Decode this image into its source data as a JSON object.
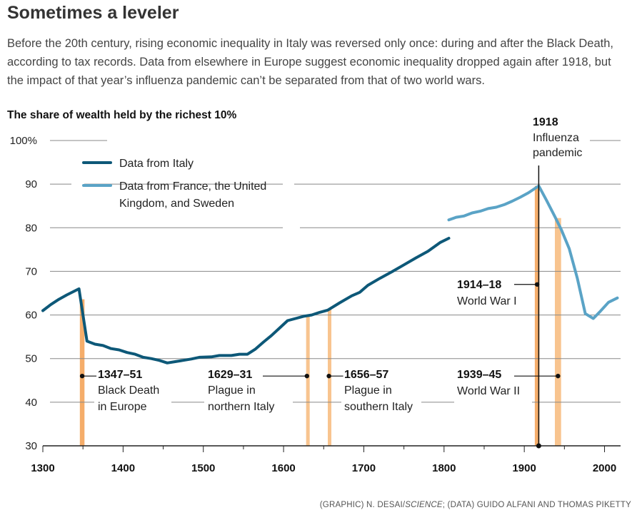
{
  "title": "Sometimes a leveler",
  "subtitle": "Before the 20th century, rising economic inequality in Italy was reversed only once: during and after the Black Death, according to tax records. Data from elsewhere in Europe suggest economic inequality dropped again after 1918, but the impact of that year’s influenza pandemic can’t be separated from that of two world wars.",
  "credit": {
    "prefix": "(GRAPHIC) N. DESAI/",
    "italic": "SCIENCE",
    "suffix": "; (DATA) GUIDO ALFANI AND THOMAS PIKETTY"
  },
  "colors": {
    "italy": "#0d5878",
    "europe": "#5aa3c6",
    "band_dark": "#f5ad6a",
    "band_light": "#f8c48f",
    "grid": "#555555"
  },
  "chart_data": {
    "type": "line",
    "title": "The share of wealth held by the richest 10%",
    "xlabel": "",
    "ylabel": "",
    "xlim": [
      1300,
      2020
    ],
    "ylim": [
      30,
      100
    ],
    "x_ticks": [
      "1300",
      "1400",
      "1500",
      "1600",
      "1700",
      "1800",
      "1900",
      "2000"
    ],
    "y_ticks": [
      "30",
      "40",
      "50",
      "60",
      "70",
      "80",
      "90",
      "100%"
    ],
    "y_tick_values": [
      30,
      40,
      50,
      60,
      70,
      80,
      90,
      100
    ],
    "x_tick_values": [
      1300,
      1400,
      1500,
      1600,
      1700,
      1800,
      1900,
      2000
    ],
    "series": [
      {
        "name": "Data from Italy",
        "color_key": "italy",
        "points": [
          [
            1300,
            61
          ],
          [
            1310,
            62.4
          ],
          [
            1320,
            63.6
          ],
          [
            1330,
            64.6
          ],
          [
            1345,
            66
          ],
          [
            1355,
            54
          ],
          [
            1365,
            53.3
          ],
          [
            1375,
            53
          ],
          [
            1385,
            52.3
          ],
          [
            1395,
            52
          ],
          [
            1405,
            51.4
          ],
          [
            1415,
            51
          ],
          [
            1425,
            50.3
          ],
          [
            1435,
            50
          ],
          [
            1445,
            49.6
          ],
          [
            1455,
            49
          ],
          [
            1465,
            49.3
          ],
          [
            1475,
            49.6
          ],
          [
            1485,
            49.9
          ],
          [
            1495,
            50.3
          ],
          [
            1510,
            50.4
          ],
          [
            1520,
            50.7
          ],
          [
            1535,
            50.7
          ],
          [
            1545,
            51
          ],
          [
            1555,
            51
          ],
          [
            1565,
            52.2
          ],
          [
            1575,
            53.8
          ],
          [
            1585,
            55.3
          ],
          [
            1595,
            57
          ],
          [
            1605,
            58.7
          ],
          [
            1615,
            59.2
          ],
          [
            1625,
            59.7
          ],
          [
            1635,
            60
          ],
          [
            1645,
            60.6
          ],
          [
            1655,
            61.1
          ],
          [
            1670,
            62.8
          ],
          [
            1685,
            64.4
          ],
          [
            1695,
            65.2
          ],
          [
            1705,
            66.8
          ],
          [
            1720,
            68.4
          ],
          [
            1735,
            69.9
          ],
          [
            1750,
            71.5
          ],
          [
            1765,
            73.1
          ],
          [
            1780,
            74.6
          ],
          [
            1795,
            76.6
          ],
          [
            1806,
            77.6
          ]
        ]
      },
      {
        "name": "Data from France, the United Kingdom, and Sweden",
        "color_key": "europe",
        "points": [
          [
            1806,
            81.8
          ],
          [
            1815,
            82.4
          ],
          [
            1825,
            82.7
          ],
          [
            1835,
            83.4
          ],
          [
            1845,
            83.8
          ],
          [
            1855,
            84.4
          ],
          [
            1865,
            84.7
          ],
          [
            1875,
            85.3
          ],
          [
            1885,
            86.1
          ],
          [
            1895,
            87
          ],
          [
            1905,
            88
          ],
          [
            1918,
            89.6
          ],
          [
            1928,
            86.2
          ],
          [
            1938,
            82.6
          ],
          [
            1946,
            79.6
          ],
          [
            1956,
            75.2
          ],
          [
            1966,
            68.5
          ],
          [
            1976,
            60.3
          ],
          [
            1986,
            59.2
          ],
          [
            1994,
            60.7
          ],
          [
            2005,
            62.9
          ],
          [
            2016,
            63.9
          ]
        ]
      }
    ],
    "legend": [
      {
        "label": "Data from Italy",
        "color_key": "italy"
      },
      {
        "label": "Data from France, the United",
        "label2": "Kingdom, and Sweden",
        "color_key": "europe"
      }
    ],
    "bands": [
      {
        "start": 1347,
        "end": 1351,
        "color_key": "band_dark"
      },
      {
        "start": 1629,
        "end": 1631,
        "color_key": "band_light"
      },
      {
        "start": 1656,
        "end": 1657,
        "color_key": "band_light"
      },
      {
        "start": 1914,
        "end": 1918,
        "color_key": "band_dark"
      },
      {
        "start": 1939,
        "end": 1945,
        "color_key": "band_light"
      }
    ],
    "annotations": [
      {
        "years": "1347–51",
        "line1": "Black Death",
        "line2": "in Europe",
        "x": 1349,
        "y": 46
      },
      {
        "years": "1629–31",
        "line1": "Plague in",
        "line2": "northern Italy",
        "x": 1630,
        "y": 46
      },
      {
        "years": "1656–57",
        "line1": "Plague in",
        "line2": "southern Italy",
        "x": 1656.5,
        "y": 46
      },
      {
        "years": "1914–18",
        "line1": "World War I",
        "line2": "",
        "x": 1916,
        "y": 67
      },
      {
        "years": "1939–45",
        "line1": "World War II",
        "line2": "",
        "x": 1942,
        "y": 46
      },
      {
        "years": "1918",
        "line1": "Influenza",
        "line2": "pandemic",
        "x": 1918,
        "y": 30
      }
    ]
  }
}
